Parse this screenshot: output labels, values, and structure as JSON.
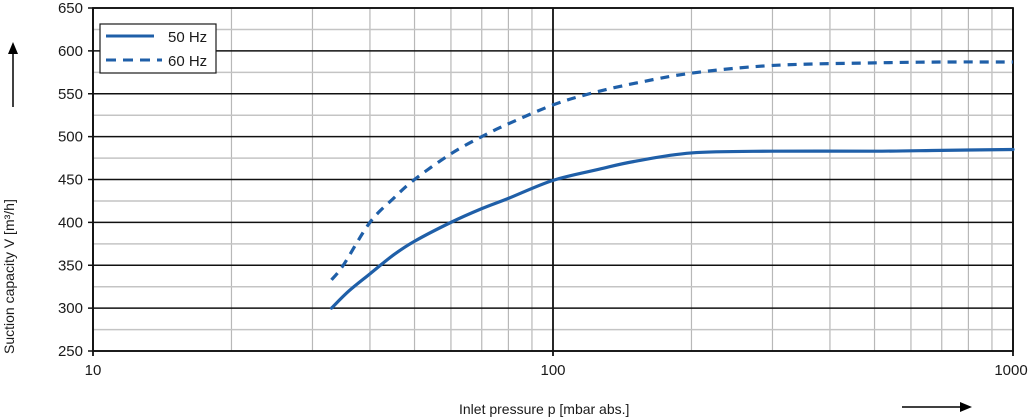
{
  "chart_data": {
    "type": "line",
    "title": "",
    "xlabel": "Inlet pressure p [mbar abs.]",
    "ylabel": "Suction capacity V [m³/h]",
    "xscale": "log",
    "xlim": [
      10,
      1000
    ],
    "ylim": [
      250,
      650
    ],
    "x_ticks": [
      "10",
      "100",
      "1000"
    ],
    "y_ticks": [
      "250",
      "300",
      "350",
      "400",
      "450",
      "500",
      "550",
      "600",
      "650"
    ],
    "y_minor_step": 25,
    "grid": true,
    "legend_position": "upper left",
    "series": [
      {
        "name": "50 Hz",
        "style": "solid",
        "color": "#1f5fa8",
        "x": [
          33,
          36,
          40,
          45,
          50,
          60,
          70,
          80,
          100,
          126,
          150,
          200,
          300,
          500,
          700,
          1000
        ],
        "y": [
          300,
          320,
          340,
          362,
          378,
          400,
          416,
          428,
          449,
          462,
          471,
          481,
          483,
          483,
          484,
          485
        ]
      },
      {
        "name": "60 Hz",
        "style": "dashed",
        "color": "#1f5fa8",
        "x": [
          33,
          35,
          40,
          45,
          50,
          60,
          70,
          80,
          100,
          120,
          150,
          200,
          300,
          500,
          700,
          1000
        ],
        "y": [
          333,
          350,
          400,
          428,
          450,
          480,
          500,
          515,
          537,
          550,
          562,
          574,
          583,
          586,
          587,
          587
        ]
      }
    ]
  },
  "legend": {
    "items": [
      "50 Hz",
      "60 Hz"
    ]
  },
  "axes": {
    "xlabel": "Inlet pressure p [mbar abs.]",
    "ylabel": "Suction capacity V [m³/h]"
  }
}
